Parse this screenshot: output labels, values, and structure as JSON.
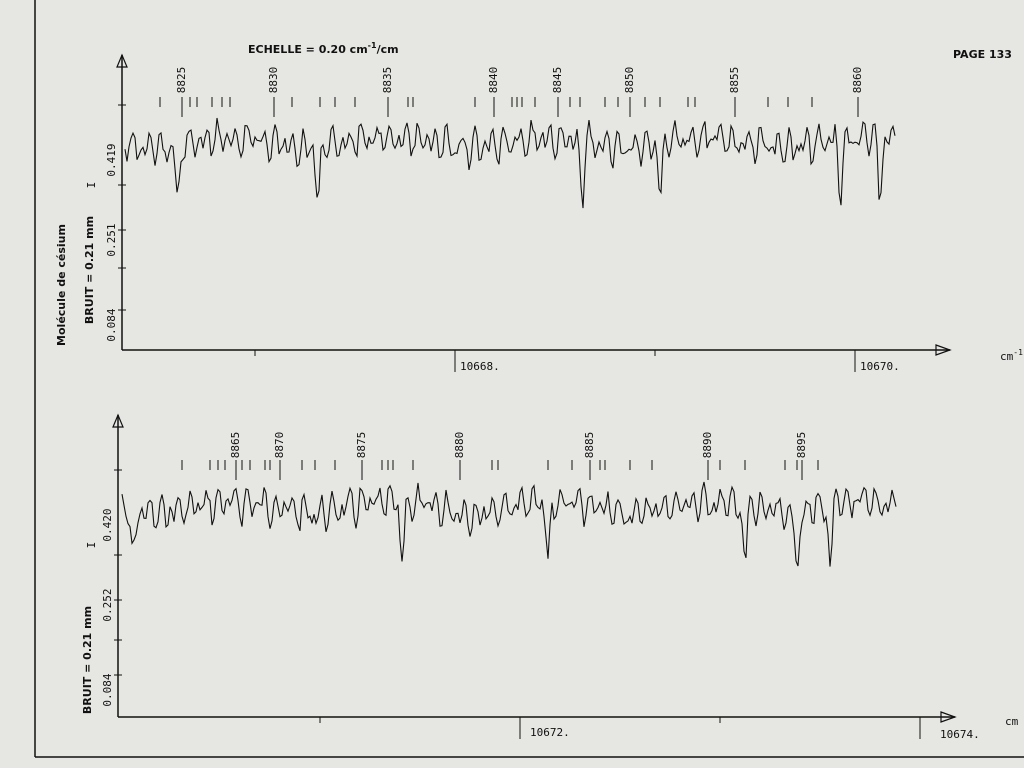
{
  "header": {
    "scale": [
      "ECHELLE = 0.20 cm",
      "-1",
      "/cm"
    ],
    "page": "PAGE 133"
  },
  "panels": [
    {
      "molecule": "Molécule de césium",
      "noise": "BRUIT = 0.21 mm",
      "symbol": "I",
      "y_labels": [
        "0.419",
        "0.251",
        "0.084"
      ],
      "x_labels": [
        "10668.",
        "10670."
      ],
      "unit": [
        "cm",
        "-1"
      ],
      "line_numbers": [
        "8825",
        "8830",
        "8835",
        "8840",
        "8845",
        "8850",
        "8855",
        "8860"
      ]
    },
    {
      "noise": "BRUIT = 0.21 mm",
      "symbol": "I",
      "y_labels": [
        "0.420",
        "0.252",
        "0.084"
      ],
      "x_labels": [
        "10672.",
        "10674."
      ],
      "unit": [
        "cm"
      ],
      "line_numbers": [
        "8865",
        "8870",
        "8875",
        "8880",
        "8885",
        "8890",
        "8895"
      ]
    }
  ]
}
